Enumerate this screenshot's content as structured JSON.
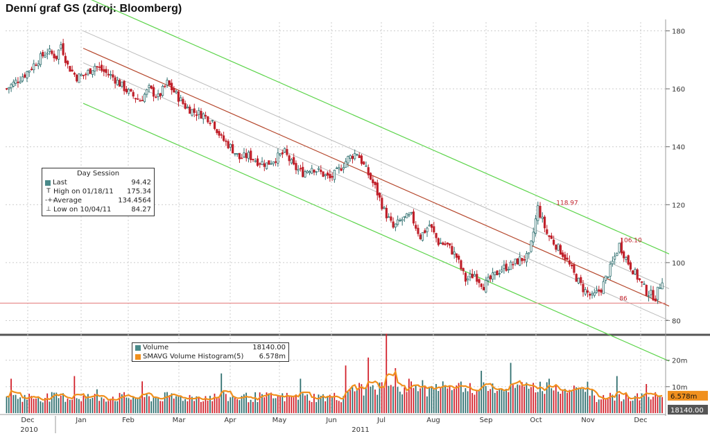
{
  "title": "Denní graf GS (zdroj: Bloomberg)",
  "price_legend": {
    "header": "Day Session",
    "rows": [
      {
        "label": "Last",
        "value": "94.42",
        "marker": "square",
        "color": "#4a8a8a"
      },
      {
        "label": "High on 01/18/11",
        "value": "175.34",
        "marker": "T"
      },
      {
        "label": "Average",
        "value": "134.4564",
        "marker": "-+-"
      },
      {
        "label": "Low on 10/04/11",
        "value": "84.27",
        "marker": "⊥"
      }
    ]
  },
  "volume_legend": {
    "rows": [
      {
        "label": "Volume",
        "value": "18140.00",
        "color": "#4a8a8a"
      },
      {
        "label": "SMAVG Volume Histogram(5)",
        "value": "6.578m",
        "color": "#f0901e"
      }
    ]
  },
  "chart_data": [
    {
      "type": "candlestick",
      "price_axis": {
        "ticks": [
          "80",
          "100",
          "120",
          "140",
          "160",
          "180"
        ],
        "ylim": [
          77,
          183
        ]
      },
      "x_axis": {
        "months": [
          "Dec",
          "Jan",
          "Feb",
          "Mar",
          "Apr",
          "May",
          "Jun",
          "Jul",
          "Aug",
          "Sep",
          "Oct",
          "Nov",
          "Dec"
        ],
        "years": [
          "2010",
          "2011"
        ]
      },
      "annotations": [
        {
          "label": "118.97",
          "price": 118.97
        },
        {
          "label": "106.10",
          "price": 106.1
        },
        {
          "label": "86",
          "price": 86
        }
      ],
      "horizontal_line": 86,
      "price_path": [
        [
          0,
          160
        ],
        [
          8,
          165
        ],
        [
          14,
          170
        ],
        [
          18,
          173
        ],
        [
          22,
          171
        ],
        [
          24,
          175.34
        ],
        [
          27,
          168
        ],
        [
          31,
          164
        ],
        [
          35,
          165
        ],
        [
          39,
          168
        ],
        [
          43,
          166
        ],
        [
          47,
          164
        ],
        [
          51,
          161
        ],
        [
          55,
          158
        ],
        [
          59,
          156
        ],
        [
          63,
          160
        ],
        [
          67,
          157
        ],
        [
          71,
          162
        ],
        [
          75,
          158
        ],
        [
          79,
          154
        ],
        [
          83,
          152
        ],
        [
          87,
          151
        ],
        [
          91,
          149
        ],
        [
          95,
          143
        ],
        [
          99,
          140
        ],
        [
          103,
          136
        ],
        [
          107,
          137
        ],
        [
          111,
          135
        ],
        [
          115,
          134
        ],
        [
          119,
          136
        ],
        [
          123,
          138
        ],
        [
          127,
          133
        ],
        [
          131,
          131
        ],
        [
          135,
          133
        ],
        [
          139,
          131
        ],
        [
          143,
          129
        ],
        [
          147,
          132
        ],
        [
          151,
          136
        ],
        [
          155,
          138
        ],
        [
          159,
          132
        ],
        [
          163,
          126
        ],
        [
          167,
          118
        ],
        [
          171,
          112
        ],
        [
          175,
          115
        ],
        [
          179,
          116
        ],
        [
          183,
          109
        ],
        [
          187,
          113
        ],
        [
          191,
          107
        ],
        [
          195,
          106
        ],
        [
          199,
          102
        ],
        [
          203,
          94
        ],
        [
          207,
          96
        ],
        [
          211,
          92
        ],
        [
          215,
          95
        ],
        [
          219,
          98
        ],
        [
          223,
          99
        ],
        [
          227,
          101
        ],
        [
          231,
          102
        ],
        [
          235,
          118.97
        ],
        [
          239,
          110
        ],
        [
          243,
          106
        ],
        [
          247,
          102
        ],
        [
          251,
          96
        ],
        [
          255,
          91
        ],
        [
          259,
          88
        ],
        [
          263,
          91
        ],
        [
          267,
          98
        ],
        [
          271,
          106.1
        ],
        [
          275,
          100
        ],
        [
          279,
          95
        ],
        [
          283,
          90
        ],
        [
          287,
          88
        ],
        [
          290,
          94.42
        ]
      ],
      "price_channel": {
        "center_start": 174,
        "center_end": 85,
        "lines": [
          -19,
          -5,
          0,
          6,
          18
        ]
      },
      "volume_axis": {
        "ticks": [
          "10m",
          "20m"
        ],
        "badges": [
          "6.578m",
          "18140.00"
        ]
      },
      "volume_spikes": [
        [
          2,
          13
        ],
        [
          30,
          14
        ],
        [
          40,
          9
        ],
        [
          60,
          12
        ],
        [
          95,
          15
        ],
        [
          130,
          13
        ],
        [
          150,
          18
        ],
        [
          160,
          21
        ],
        [
          168,
          30
        ],
        [
          172,
          17
        ],
        [
          178,
          13
        ],
        [
          190,
          11
        ],
        [
          210,
          16
        ],
        [
          223,
          19
        ],
        [
          240,
          13
        ],
        [
          270,
          14
        ],
        [
          283,
          11
        ]
      ]
    }
  ]
}
